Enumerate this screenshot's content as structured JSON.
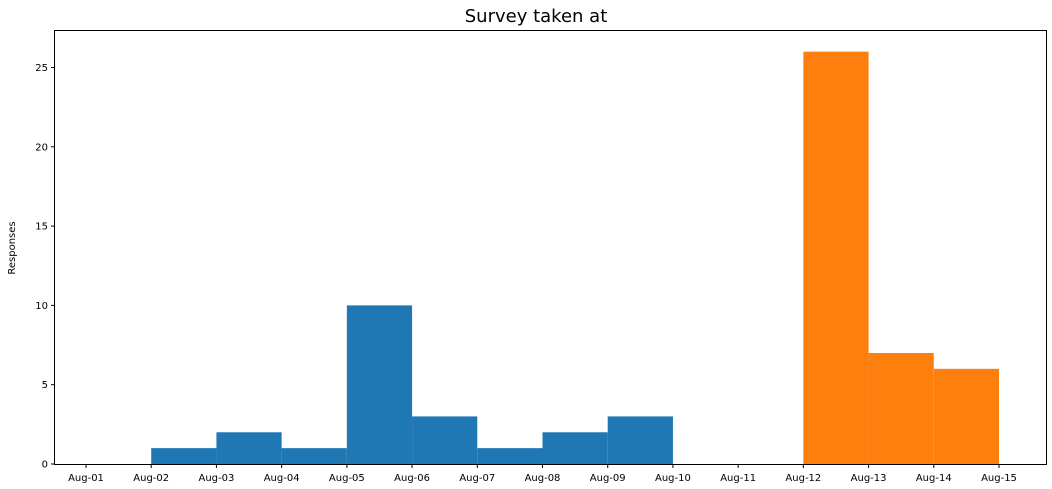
{
  "chart_data": {
    "type": "bar",
    "title": "Survey taken at",
    "xlabel": "",
    "ylabel": "Responses",
    "x_tick_labels": [
      "Aug-01",
      "Aug-02",
      "Aug-03",
      "Aug-04",
      "Aug-05",
      "Aug-06",
      "Aug-07",
      "Aug-08",
      "Aug-09",
      "Aug-10",
      "Aug-11",
      "Aug-12",
      "Aug-13",
      "Aug-14",
      "Aug-15"
    ],
    "y_ticks": [
      0,
      5,
      10,
      15,
      20,
      25
    ],
    "ylim": [
      0,
      27.3
    ],
    "xlim": [
      "Aug-01",
      "Aug-15"
    ],
    "grid": false,
    "legend": "none",
    "series": [
      {
        "color": "#1f77b4",
        "bins": [
          {
            "start": "Aug-02",
            "end": "Aug-03",
            "value": 1
          },
          {
            "start": "Aug-03",
            "end": "Aug-04",
            "value": 2
          },
          {
            "start": "Aug-04",
            "end": "Aug-05",
            "value": 1
          },
          {
            "start": "Aug-05",
            "end": "Aug-06",
            "value": 10
          },
          {
            "start": "Aug-06",
            "end": "Aug-07",
            "value": 3
          },
          {
            "start": "Aug-07",
            "end": "Aug-08",
            "value": 1
          },
          {
            "start": "Aug-08",
            "end": "Aug-09",
            "value": 2
          },
          {
            "start": "Aug-09",
            "end": "Aug-10",
            "value": 3
          }
        ]
      },
      {
        "color": "#ff7f0e",
        "bins": [
          {
            "start": "Aug-12",
            "end": "Aug-13",
            "value": 26
          },
          {
            "start": "Aug-13",
            "end": "Aug-14",
            "value": 7
          },
          {
            "start": "Aug-14",
            "end": "Aug-15",
            "value": 6
          }
        ]
      }
    ]
  }
}
